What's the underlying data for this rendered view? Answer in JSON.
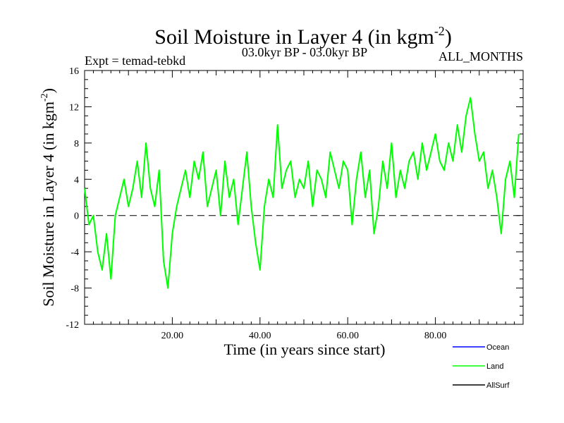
{
  "chart_data": {
    "type": "line",
    "title": "Soil Moisture in Layer 4 (in kgm",
    "title_sup": "-2",
    "title_close": ")",
    "subtitle_left": "Expt = temad-tebkd",
    "subtitle_center": "03.0kyr BP - 03.0kyr BP",
    "subtitle_right": "ALL_MONTHS",
    "xlabel": "Time (in years since start)",
    "ylabel": "Soil Moisture in Layer 4 (in kgm",
    "ylabel_sup": "-2",
    "ylabel_close": ")",
    "xlim": [
      0,
      100
    ],
    "ylim": [
      -12,
      16
    ],
    "xticks": [
      20,
      40,
      60,
      80
    ],
    "xtick_labels": [
      "20.00",
      "40.00",
      "60.00",
      "80.00"
    ],
    "yticks": [
      -12,
      -8,
      -4,
      0,
      4,
      8,
      12,
      16
    ],
    "ytick_labels": [
      "-12",
      "-8",
      "-4",
      "0",
      "4",
      "8",
      "12",
      "16"
    ],
    "zero_line": true,
    "legend_position": "bottom-right",
    "series": [
      {
        "name": "Ocean",
        "color": "#0000ff",
        "values": []
      },
      {
        "name": "Land",
        "color": "#00ff00",
        "x": [
          0,
          1,
          2,
          3,
          4,
          5,
          6,
          7,
          8,
          9,
          10,
          11,
          12,
          13,
          14,
          15,
          16,
          17,
          18,
          19,
          20,
          21,
          22,
          23,
          24,
          25,
          26,
          27,
          28,
          29,
          30,
          31,
          32,
          33,
          34,
          35,
          36,
          37,
          38,
          39,
          40,
          41,
          42,
          43,
          44,
          45,
          46,
          47,
          48,
          49,
          50,
          51,
          52,
          53,
          54,
          55,
          56,
          57,
          58,
          59,
          60,
          61,
          62,
          63,
          64,
          65,
          66,
          67,
          68,
          69,
          70,
          71,
          72,
          73,
          74,
          75,
          76,
          77,
          78,
          79,
          80,
          81,
          82,
          83,
          84,
          85,
          86,
          87,
          88,
          89,
          90,
          91,
          92,
          93,
          94,
          95,
          96,
          97,
          98,
          99
        ],
        "values": [
          3,
          -1,
          0,
          -4,
          -6,
          -2,
          -7,
          0,
          2,
          4,
          1,
          3,
          6,
          2,
          8,
          3,
          1,
          5,
          -5,
          -8,
          -2,
          1,
          3,
          5,
          2,
          6,
          4,
          7,
          1,
          3,
          5,
          0,
          6,
          2,
          4,
          -1,
          3,
          7,
          1,
          -3,
          -6,
          1,
          4,
          2,
          10,
          3,
          5,
          6,
          2,
          4,
          3,
          6,
          1,
          5,
          4,
          2,
          7,
          5,
          3,
          6,
          5,
          -1,
          4,
          7,
          2,
          5,
          -2,
          1,
          6,
          3,
          8,
          2,
          5,
          3,
          6,
          7,
          4,
          8,
          5,
          7,
          9,
          6,
          5,
          8,
          6,
          10,
          7,
          11,
          13,
          9,
          6,
          7,
          3,
          5,
          2,
          -2,
          4,
          6,
          2,
          9
        ]
      },
      {
        "name": "AllSurf",
        "color": "#000000",
        "values": []
      }
    ]
  }
}
